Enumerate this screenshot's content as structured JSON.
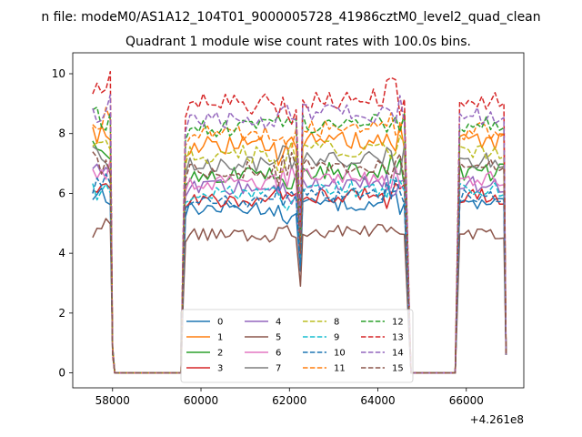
{
  "figure": {
    "suptitle": "n file: modeM0/AS1A12_104T01_9000005728_41986cztM0_level2_quad_clean",
    "offset_label": "+4.261e8"
  },
  "chart_data": {
    "type": "line",
    "title": "Quadrant 1 module wise count rates with 100.0s bins.",
    "xlabel": "",
    "ylabel": "",
    "x_offset": 426100000,
    "xlim": [
      57100,
      67300
    ],
    "ylim": [
      -0.5,
      10.7
    ],
    "xticks": [
      58000,
      60000,
      62000,
      64000,
      66000
    ],
    "xtick_labels": [
      "58000",
      "60000",
      "62000",
      "64000",
      "66000"
    ],
    "yticks": [
      0,
      2,
      4,
      6,
      8,
      10
    ],
    "ytick_labels": [
      "0",
      "2",
      "4",
      "6",
      "8",
      "10"
    ],
    "grid": false,
    "legend_location": "lower-center",
    "legend_columns": 4,
    "segments": [
      {
        "start": 57550,
        "end": 57950
      },
      {
        "start": 58050,
        "end": 59550
      },
      {
        "start": 59650,
        "end": 62200
      },
      {
        "start": 62250,
        "end": 62250
      },
      {
        "start": 62300,
        "end": 64650
      },
      {
        "start": 64750,
        "end": 65750
      },
      {
        "start": 65850,
        "end": 66850
      }
    ],
    "series": [
      {
        "name": "0",
        "color": "#1f77b4",
        "dash": "solid",
        "level": 5.5,
        "early": 6.0,
        "dip": 3.4
      },
      {
        "name": "1",
        "color": "#ff7f0e",
        "dash": "solid",
        "level": 7.6,
        "early": 8.1,
        "dip": 4.3
      },
      {
        "name": "2",
        "color": "#2ca02c",
        "dash": "solid",
        "level": 6.6,
        "early": 7.3,
        "dip": 3.9
      },
      {
        "name": "3",
        "color": "#d62728",
        "dash": "solid",
        "level": 5.8,
        "early": 6.2,
        "dip": 3.6
      },
      {
        "name": "4",
        "color": "#9467bd",
        "dash": "solid",
        "level": 6.2,
        "early": 6.6,
        "dip": 3.7
      },
      {
        "name": "5",
        "color": "#8c564b",
        "dash": "solid",
        "level": 4.6,
        "early": 4.8,
        "dip": 2.9
      },
      {
        "name": "6",
        "color": "#e377c2",
        "dash": "solid",
        "level": 6.4,
        "early": 6.8,
        "dip": 3.8
      },
      {
        "name": "7",
        "color": "#7f7f7f",
        "dash": "solid",
        "level": 7.0,
        "early": 7.2,
        "dip": 4.0
      },
      {
        "name": "8",
        "color": "#bcbd22",
        "dash": "dashed",
        "level": 7.3,
        "early": 7.8,
        "dip": 4.1
      },
      {
        "name": "9",
        "color": "#17becf",
        "dash": "dashed",
        "level": 6.0,
        "early": 6.2,
        "dip": 3.7
      },
      {
        "name": "10",
        "color": "#1f77b4",
        "dash": "dashed",
        "level": 5.8,
        "early": 6.4,
        "dip": 3.6
      },
      {
        "name": "11",
        "color": "#ff7f0e",
        "dash": "dashed",
        "level": 8.0,
        "early": 8.4,
        "dip": 4.5
      },
      {
        "name": "12",
        "color": "#2ca02c",
        "dash": "dashed",
        "level": 8.2,
        "early": 8.5,
        "dip": 4.6
      },
      {
        "name": "13",
        "color": "#d62728",
        "dash": "dashed",
        "level": 9.0,
        "early": 9.7,
        "dip": 5.0
      },
      {
        "name": "14",
        "color": "#9467bd",
        "dash": "dashed",
        "level": 8.5,
        "early": 8.8,
        "dip": 4.7
      },
      {
        "name": "15",
        "color": "#8c564b",
        "dash": "dashed",
        "level": 6.8,
        "early": 7.0,
        "dip": 4.0
      }
    ]
  }
}
